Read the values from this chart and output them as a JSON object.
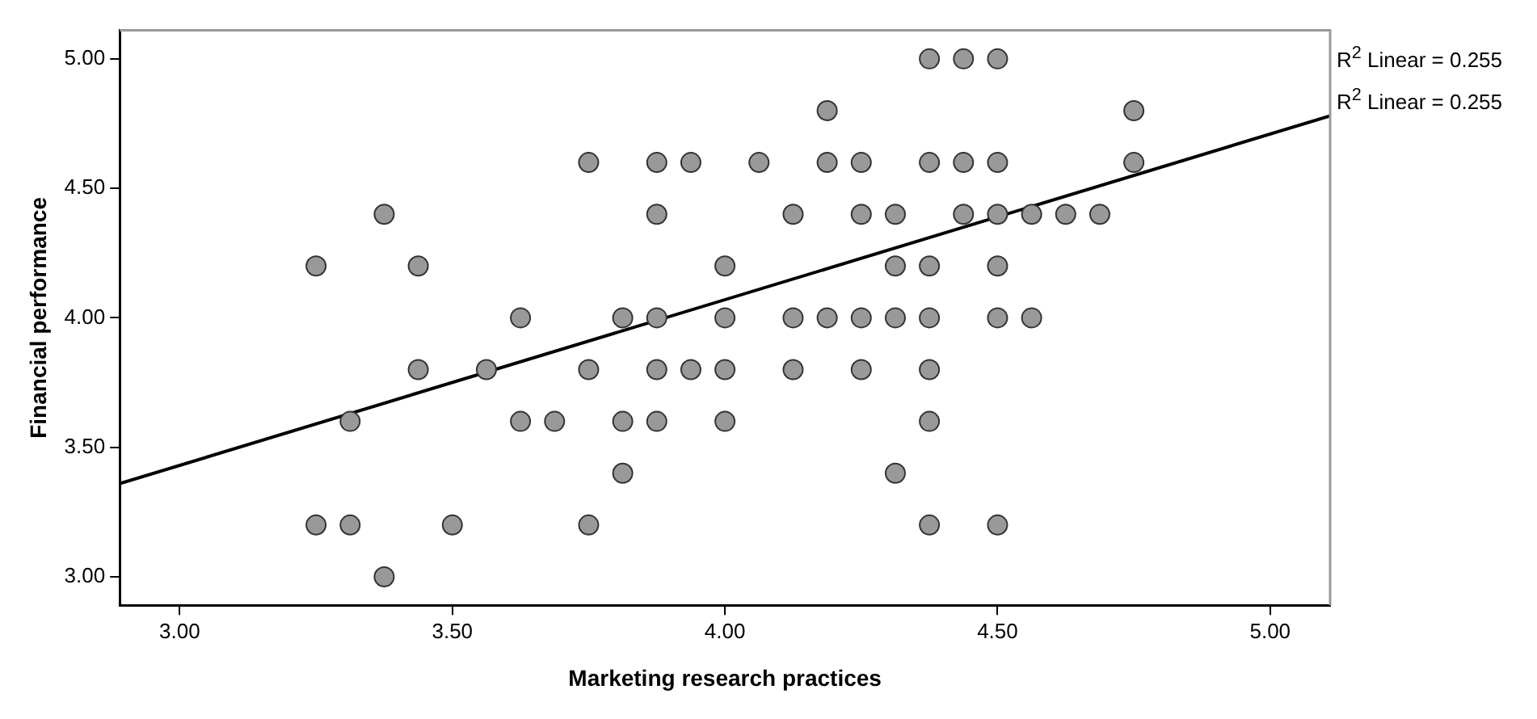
{
  "chart_data": {
    "type": "scatter",
    "xlabel": "Marketing research practices",
    "ylabel": "Financial performance",
    "xlim": [
      2.89,
      5.11
    ],
    "ylim": [
      2.89,
      5.11
    ],
    "xticks": [
      {
        "value": 3,
        "label": "3.00"
      },
      {
        "value": 3.5,
        "label": "3.50"
      },
      {
        "value": 4,
        "label": "4.00"
      },
      {
        "value": 4.5,
        "label": "4.50"
      },
      {
        "value": 5,
        "label": "5.00"
      }
    ],
    "yticks": [
      {
        "value": 3,
        "label": "3.00"
      },
      {
        "value": 3.5,
        "label": "3.50"
      },
      {
        "value": 4,
        "label": "4.00"
      },
      {
        "value": 4.5,
        "label": "4.50"
      },
      {
        "value": 5,
        "label": "5.00"
      }
    ],
    "marker": "circle",
    "legend": false,
    "annotations": [
      "R$^{2}$ Linear = 0.255",
      "R$^{2}$ Linear = 0.255"
    ],
    "series": [
      {
        "type": "scatter",
        "color": "#999999",
        "x": [
          3.25,
          3.25,
          3.3125,
          3.3125,
          3.375,
          3.375,
          3.4375,
          3.4375,
          3.5,
          3.5625,
          3.625,
          3.625,
          3.6875,
          3.75,
          3.75,
          3.75,
          3.8125,
          3.8125,
          3.8125,
          3.875,
          3.875,
          3.875,
          3.875,
          3.875,
          3.9375,
          3.9375,
          4,
          4,
          4,
          4,
          4.0625,
          4.125,
          4.125,
          4.125,
          4.1875,
          4.1875,
          4.1875,
          4.25,
          4.25,
          4.25,
          4.25,
          4.3125,
          4.3125,
          4.3125,
          4.3125,
          4.375,
          4.375,
          4.375,
          4.375,
          4.375,
          4.375,
          4.375,
          4.4375,
          4.4375,
          4.4375,
          4.5,
          4.5,
          4.5,
          4.5,
          4.5,
          4.5,
          4.5625,
          4.5625,
          4.625,
          4.6875,
          4.75,
          4.75
        ],
        "values": [
          4.2,
          3.2,
          3.6,
          3.2,
          4.4,
          3.0,
          4.2,
          3.8,
          3.2,
          3.8,
          4.0,
          3.6,
          3.6,
          4.6,
          3.8,
          3.2,
          4.0,
          3.6,
          3.4,
          4.6,
          4.4,
          4.0,
          3.8,
          3.6,
          4.6,
          3.8,
          4.2,
          4.0,
          3.8,
          3.6,
          4.6,
          4.4,
          4.0,
          3.8,
          4.8,
          4.6,
          4.0,
          4.6,
          4.4,
          4.0,
          3.8,
          4.4,
          4.2,
          4.0,
          3.4,
          5.0,
          4.6,
          4.2,
          4.0,
          3.8,
          3.6,
          3.2,
          5.0,
          4.6,
          4.4,
          5.0,
          4.6,
          4.4,
          4.2,
          4.0,
          3.2,
          4.4,
          4.0,
          4.4,
          4.4,
          4.8,
          4.6
        ]
      },
      {
        "type": "line",
        "color": "#000000",
        "marker": "none",
        "x": [
          2.89,
          5.11
        ],
        "values": [
          3.36,
          4.78
        ]
      }
    ]
  }
}
